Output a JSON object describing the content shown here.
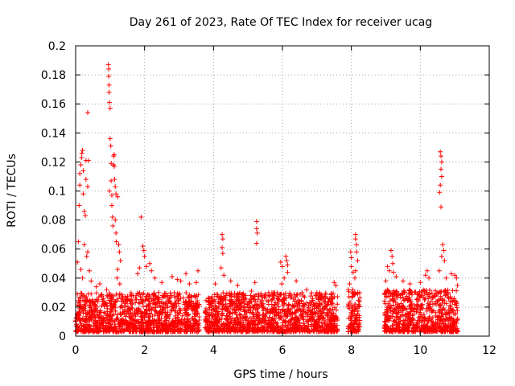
{
  "chart_data": {
    "type": "scatter",
    "title": "Day 261 of 2023, Rate Of TEC Index for receiver ucag",
    "xlabel": "GPS time / hours",
    "ylabel": "ROTI / TECUs",
    "xlim": [
      0,
      12
    ],
    "ylim": [
      0,
      0.2
    ],
    "x_ticks": [
      0,
      2,
      4,
      6,
      8,
      10,
      12
    ],
    "x_tick_labels": [
      "0",
      "2",
      "4",
      "6",
      "8",
      "10",
      "12"
    ],
    "y_ticks": [
      0,
      0.02,
      0.04,
      0.06,
      0.08,
      0.1,
      0.12,
      0.14,
      0.16,
      0.18,
      0.2
    ],
    "y_tick_labels": [
      "0",
      "0.02",
      "0.04",
      "0.06",
      "0.08",
      "0.1",
      "0.12",
      "0.14",
      "0.16",
      "0.18",
      "0.2"
    ],
    "grid": true,
    "marker": "+",
    "color": "#ff0000",
    "series": [
      {
        "name": "ROTI",
        "background_segments": [
          {
            "x_start": 0.0,
            "x_end": 3.6,
            "y_min": 0.003,
            "y_max": 0.03
          },
          {
            "x_start": 3.75,
            "x_end": 7.6,
            "y_min": 0.003,
            "y_max": 0.03
          },
          {
            "x_start": 7.9,
            "x_end": 8.25,
            "y_min": 0.003,
            "y_max": 0.032
          },
          {
            "x_start": 8.95,
            "x_end": 11.1,
            "y_min": 0.003,
            "y_max": 0.032
          }
        ],
        "points": [
          {
            "x": 0.05,
            "y": 0.029
          },
          {
            "x": 0.05,
            "y": 0.051
          },
          {
            "x": 0.08,
            "y": 0.065
          },
          {
            "x": 0.1,
            "y": 0.09
          },
          {
            "x": 0.12,
            "y": 0.104
          },
          {
            "x": 0.12,
            "y": 0.112
          },
          {
            "x": 0.15,
            "y": 0.118
          },
          {
            "x": 0.17,
            "y": 0.123
          },
          {
            "x": 0.18,
            "y": 0.126
          },
          {
            "x": 0.2,
            "y": 0.128
          },
          {
            "x": 0.22,
            "y": 0.114
          },
          {
            "x": 0.22,
            "y": 0.098
          },
          {
            "x": 0.25,
            "y": 0.086
          },
          {
            "x": 0.25,
            "y": 0.063
          },
          {
            "x": 0.28,
            "y": 0.083
          },
          {
            "x": 0.3,
            "y": 0.108
          },
          {
            "x": 0.3,
            "y": 0.121
          },
          {
            "x": 0.32,
            "y": 0.055
          },
          {
            "x": 0.35,
            "y": 0.058
          },
          {
            "x": 0.35,
            "y": 0.103
          },
          {
            "x": 0.35,
            "y": 0.154
          },
          {
            "x": 0.37,
            "y": 0.121
          },
          {
            "x": 0.2,
            "y": 0.04
          },
          {
            "x": 0.15,
            "y": 0.046
          },
          {
            "x": 0.4,
            "y": 0.045
          },
          {
            "x": 0.45,
            "y": 0.038
          },
          {
            "x": 0.6,
            "y": 0.034
          },
          {
            "x": 0.7,
            "y": 0.036
          },
          {
            "x": 0.9,
            "y": 0.032
          },
          {
            "x": 0.95,
            "y": 0.187
          },
          {
            "x": 0.96,
            "y": 0.184
          },
          {
            "x": 0.96,
            "y": 0.179
          },
          {
            "x": 0.97,
            "y": 0.173
          },
          {
            "x": 0.97,
            "y": 0.168
          },
          {
            "x": 0.98,
            "y": 0.161
          },
          {
            "x": 1.0,
            "y": 0.157
          },
          {
            "x": 1.0,
            "y": 0.136
          },
          {
            "x": 1.02,
            "y": 0.131
          },
          {
            "x": 1.03,
            "y": 0.119
          },
          {
            "x": 1.03,
            "y": 0.107
          },
          {
            "x": 0.98,
            "y": 0.1
          },
          {
            "x": 1.05,
            "y": 0.097
          },
          {
            "x": 1.05,
            "y": 0.09
          },
          {
            "x": 1.07,
            "y": 0.082
          },
          {
            "x": 1.08,
            "y": 0.076
          },
          {
            "x": 1.1,
            "y": 0.124
          },
          {
            "x": 1.1,
            "y": 0.118
          },
          {
            "x": 1.12,
            "y": 0.125
          },
          {
            "x": 1.12,
            "y": 0.117
          },
          {
            "x": 1.13,
            "y": 0.108
          },
          {
            "x": 1.15,
            "y": 0.103
          },
          {
            "x": 1.17,
            "y": 0.098
          },
          {
            "x": 1.15,
            "y": 0.08
          },
          {
            "x": 1.17,
            "y": 0.071
          },
          {
            "x": 1.18,
            "y": 0.065
          },
          {
            "x": 1.22,
            "y": 0.096
          },
          {
            "x": 1.25,
            "y": 0.063
          },
          {
            "x": 1.27,
            "y": 0.058
          },
          {
            "x": 1.3,
            "y": 0.052
          },
          {
            "x": 1.22,
            "y": 0.046
          },
          {
            "x": 1.28,
            "y": 0.036
          },
          {
            "x": 1.2,
            "y": 0.04
          },
          {
            "x": 1.9,
            "y": 0.082
          },
          {
            "x": 1.95,
            "y": 0.062
          },
          {
            "x": 1.98,
            "y": 0.059
          },
          {
            "x": 2.0,
            "y": 0.055
          },
          {
            "x": 1.85,
            "y": 0.047
          },
          {
            "x": 1.8,
            "y": 0.043
          },
          {
            "x": 2.05,
            "y": 0.048
          },
          {
            "x": 2.15,
            "y": 0.05
          },
          {
            "x": 2.2,
            "y": 0.045
          },
          {
            "x": 2.3,
            "y": 0.04
          },
          {
            "x": 2.5,
            "y": 0.037
          },
          {
            "x": 2.8,
            "y": 0.041
          },
          {
            "x": 2.95,
            "y": 0.039
          },
          {
            "x": 3.05,
            "y": 0.038
          },
          {
            "x": 3.2,
            "y": 0.043
          },
          {
            "x": 3.3,
            "y": 0.036
          },
          {
            "x": 3.55,
            "y": 0.045
          },
          {
            "x": 3.5,
            "y": 0.037
          },
          {
            "x": 4.25,
            "y": 0.07
          },
          {
            "x": 4.27,
            "y": 0.067
          },
          {
            "x": 4.25,
            "y": 0.061
          },
          {
            "x": 4.27,
            "y": 0.057
          },
          {
            "x": 4.22,
            "y": 0.047
          },
          {
            "x": 4.3,
            "y": 0.042
          },
          {
            "x": 4.05,
            "y": 0.036
          },
          {
            "x": 4.5,
            "y": 0.038
          },
          {
            "x": 4.7,
            "y": 0.035
          },
          {
            "x": 5.25,
            "y": 0.079
          },
          {
            "x": 5.25,
            "y": 0.074
          },
          {
            "x": 5.27,
            "y": 0.071
          },
          {
            "x": 5.25,
            "y": 0.064
          },
          {
            "x": 5.2,
            "y": 0.037
          },
          {
            "x": 5.1,
            "y": 0.031
          },
          {
            "x": 5.6,
            "y": 0.03
          },
          {
            "x": 5.95,
            "y": 0.051
          },
          {
            "x": 6.0,
            "y": 0.048
          },
          {
            "x": 6.1,
            "y": 0.055
          },
          {
            "x": 6.12,
            "y": 0.052
          },
          {
            "x": 6.15,
            "y": 0.049
          },
          {
            "x": 6.15,
            "y": 0.044
          },
          {
            "x": 6.05,
            "y": 0.04
          },
          {
            "x": 5.98,
            "y": 0.036
          },
          {
            "x": 6.4,
            "y": 0.038
          },
          {
            "x": 6.7,
            "y": 0.032
          },
          {
            "x": 7.0,
            "y": 0.03
          },
          {
            "x": 7.5,
            "y": 0.037
          },
          {
            "x": 7.55,
            "y": 0.035
          },
          {
            "x": 7.98,
            "y": 0.058
          },
          {
            "x": 8.0,
            "y": 0.054
          },
          {
            "x": 8.0,
            "y": 0.048
          },
          {
            "x": 8.05,
            "y": 0.044
          },
          {
            "x": 8.12,
            "y": 0.07
          },
          {
            "x": 8.12,
            "y": 0.067
          },
          {
            "x": 8.15,
            "y": 0.063
          },
          {
            "x": 8.15,
            "y": 0.058
          },
          {
            "x": 8.18,
            "y": 0.052
          },
          {
            "x": 8.12,
            "y": 0.045
          },
          {
            "x": 8.1,
            "y": 0.04
          },
          {
            "x": 7.95,
            "y": 0.036
          },
          {
            "x": 9.05,
            "y": 0.048
          },
          {
            "x": 9.1,
            "y": 0.045
          },
          {
            "x": 9.15,
            "y": 0.059
          },
          {
            "x": 9.18,
            "y": 0.055
          },
          {
            "x": 9.2,
            "y": 0.05
          },
          {
            "x": 9.22,
            "y": 0.044
          },
          {
            "x": 9.3,
            "y": 0.041
          },
          {
            "x": 9.0,
            "y": 0.038
          },
          {
            "x": 9.5,
            "y": 0.038
          },
          {
            "x": 9.7,
            "y": 0.036
          },
          {
            "x": 10.0,
            "y": 0.037
          },
          {
            "x": 10.15,
            "y": 0.042
          },
          {
            "x": 10.2,
            "y": 0.045
          },
          {
            "x": 10.25,
            "y": 0.04
          },
          {
            "x": 10.58,
            "y": 0.127
          },
          {
            "x": 10.6,
            "y": 0.124
          },
          {
            "x": 10.62,
            "y": 0.12
          },
          {
            "x": 10.6,
            "y": 0.115
          },
          {
            "x": 10.62,
            "y": 0.11
          },
          {
            "x": 10.58,
            "y": 0.104
          },
          {
            "x": 10.56,
            "y": 0.099
          },
          {
            "x": 10.6,
            "y": 0.089
          },
          {
            "x": 10.65,
            "y": 0.063
          },
          {
            "x": 10.68,
            "y": 0.059
          },
          {
            "x": 10.62,
            "y": 0.055
          },
          {
            "x": 10.7,
            "y": 0.052
          },
          {
            "x": 10.55,
            "y": 0.045
          },
          {
            "x": 10.75,
            "y": 0.04
          },
          {
            "x": 10.9,
            "y": 0.043
          },
          {
            "x": 11.0,
            "y": 0.042
          },
          {
            "x": 11.05,
            "y": 0.04
          },
          {
            "x": 11.08,
            "y": 0.035
          }
        ]
      }
    ]
  }
}
